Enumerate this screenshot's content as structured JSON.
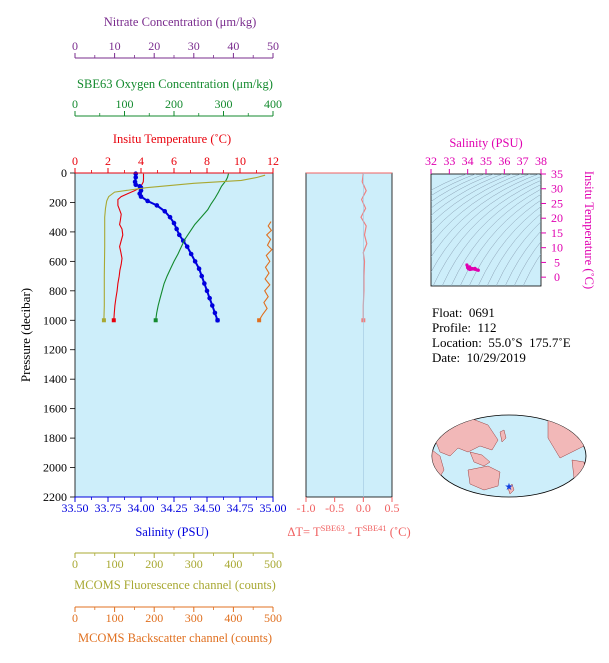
{
  "colors": {
    "plot_bg": "#cdeefa",
    "temperature": "#e8000b",
    "salinity": "#0000dd",
    "oxygen": "#138a2e",
    "nitrate": "#7a2c8e",
    "fluorescence": "#a8a832",
    "backscatter": "#e07020",
    "ts_accent": "#e000b0",
    "delta_t": "#f08080",
    "land": "#f2b8b8",
    "ocean": "#cdeefa",
    "float_marker": "#1040e0"
  },
  "info": {
    "float": "Float:  0691",
    "profile": "Profile:  112",
    "location": "Location:  55.0˚S  175.7˚E",
    "date": "Date:  10/29/2019"
  },
  "chart_data": [
    {
      "type": "line",
      "panel": "profile",
      "ylabel": "Pressure (decibar)",
      "ylim": [
        2200,
        0
      ],
      "y_ticks": [
        0,
        200,
        400,
        600,
        800,
        1000,
        1200,
        1400,
        1600,
        1800,
        2000,
        2200
      ],
      "axes": {
        "nitrate": {
          "label": "Nitrate Concentration (μm/kg)",
          "range": [
            0,
            50
          ],
          "ticks": [
            0,
            10,
            20,
            30,
            40,
            50
          ]
        },
        "oxygen": {
          "label": "SBE63 Oxygen Concentration (μm/kg)",
          "range": [
            0,
            400
          ],
          "ticks": [
            0,
            100,
            200,
            300,
            400
          ]
        },
        "temperature": {
          "label": "Insitu Temperature (˚C)",
          "range": [
            0,
            12
          ],
          "ticks": [
            0,
            2,
            4,
            6,
            8,
            10,
            12
          ]
        },
        "salinity": {
          "label": "Salinity (PSU)",
          "range": [
            33.5,
            35.0
          ],
          "ticks": [
            "33.50",
            "33.75",
            "34.00",
            "34.25",
            "34.50",
            "34.75",
            "35.00"
          ]
        },
        "fluorescence": {
          "label": "MCOMS Fluorescence channel (counts)",
          "range": [
            0,
            500
          ],
          "ticks": [
            0,
            100,
            200,
            300,
            400,
            500
          ]
        },
        "backscatter": {
          "label": "MCOMS Backscatter channel (counts)",
          "range": [
            0,
            500
          ],
          "ticks": [
            0,
            100,
            200,
            300,
            400,
            500
          ]
        }
      },
      "series": [
        {
          "name": "Insitu Temperature (˚C)",
          "axis": "temperature",
          "points": [
            [
              4.15,
              5
            ],
            [
              4.15,
              40
            ],
            [
              4.14,
              60
            ],
            [
              4.05,
              80
            ],
            [
              3.95,
              100
            ],
            [
              3.6,
              120
            ],
            [
              3.2,
              140
            ],
            [
              2.8,
              160
            ],
            [
              2.6,
              180
            ],
            [
              2.6,
              220
            ],
            [
              2.7,
              250
            ],
            [
              2.8,
              280
            ],
            [
              2.75,
              320
            ],
            [
              2.7,
              350
            ],
            [
              2.85,
              380
            ],
            [
              2.9,
              420
            ],
            [
              2.8,
              460
            ],
            [
              2.7,
              500
            ],
            [
              2.78,
              540
            ],
            [
              2.85,
              580
            ],
            [
              2.8,
              620
            ],
            [
              2.72,
              660
            ],
            [
              2.68,
              700
            ],
            [
              2.6,
              750
            ],
            [
              2.55,
              800
            ],
            [
              2.48,
              850
            ],
            [
              2.42,
              900
            ],
            [
              2.38,
              950
            ],
            [
              2.35,
              1000
            ]
          ]
        },
        {
          "name": "Salinity (PSU)",
          "axis": "salinity",
          "markers": true,
          "points": [
            [
              33.96,
              5
            ],
            [
              33.96,
              30
            ],
            [
              33.955,
              60
            ],
            [
              33.96,
              80
            ],
            [
              33.99,
              90
            ],
            [
              34.0,
              100
            ],
            [
              34.0,
              120
            ],
            [
              33.99,
              140
            ],
            [
              34.0,
              160
            ],
            [
              34.05,
              190
            ],
            [
              34.12,
              220
            ],
            [
              34.18,
              260
            ],
            [
              34.22,
              300
            ],
            [
              34.25,
              340
            ],
            [
              34.27,
              380
            ],
            [
              34.29,
              420
            ],
            [
              34.32,
              460
            ],
            [
              34.35,
              500
            ],
            [
              34.38,
              550
            ],
            [
              34.41,
              600
            ],
            [
              34.44,
              650
            ],
            [
              34.46,
              700
            ],
            [
              34.48,
              750
            ],
            [
              34.5,
              800
            ],
            [
              34.52,
              850
            ],
            [
              34.54,
              900
            ],
            [
              34.56,
              950
            ],
            [
              34.58,
              1000
            ]
          ]
        },
        {
          "name": "SBE63 Oxygen Concentration (μm/kg)",
          "axis": "oxygen",
          "points": [
            [
              310,
              5
            ],
            [
              308,
              30
            ],
            [
              305,
              50
            ],
            [
              296,
              90
            ],
            [
              290,
              130
            ],
            [
              283,
              170
            ],
            [
              275,
              210
            ],
            [
              268,
              250
            ],
            [
              255,
              300
            ],
            [
              242,
              350
            ],
            [
              232,
              400
            ],
            [
              222,
              450
            ],
            [
              215,
              500
            ],
            [
              208,
              550
            ],
            [
              200,
              600
            ],
            [
              193,
              650
            ],
            [
              186,
              700
            ],
            [
              180,
              750
            ],
            [
              176,
              800
            ],
            [
              172,
              850
            ],
            [
              168,
              900
            ],
            [
              165,
              950
            ],
            [
              163,
              1000
            ]
          ]
        },
        {
          "name": "MCOMS Fluorescence channel (counts)",
          "axis": "fluorescence",
          "points": [
            [
              480,
              15
            ],
            [
              460,
              30
            ],
            [
              420,
              50
            ],
            [
              300,
              70
            ],
            [
              180,
              100
            ],
            [
              100,
              130
            ],
            [
              85,
              160
            ],
            [
              80,
              190
            ],
            [
              77,
              240
            ],
            [
              75,
              300
            ],
            [
              75,
              500
            ],
            [
              74,
              700
            ],
            [
              74,
              900
            ],
            [
              73,
              1000
            ]
          ]
        },
        {
          "name": "MCOMS Backscatter channel (counts)",
          "axis": "backscatter",
          "points": [
            [
              495,
              330
            ],
            [
              488,
              360
            ],
            [
              496,
              390
            ],
            [
              484,
              420
            ],
            [
              494,
              450
            ],
            [
              486,
              490
            ],
            [
              497,
              520
            ],
            [
              483,
              560
            ],
            [
              492,
              600
            ],
            [
              481,
              640
            ],
            [
              490,
              680
            ],
            [
              480,
              720
            ],
            [
              492,
              760
            ],
            [
              479,
              800
            ],
            [
              488,
              840
            ],
            [
              477,
              880
            ],
            [
              485,
              920
            ],
            [
              474,
              960
            ],
            [
              465,
              1000
            ]
          ]
        }
      ]
    },
    {
      "type": "line",
      "panel": "delta_t",
      "xlabel": "ΔT= T",
      "xlabel_sup1": "SBE63",
      "xlabel_mid": " - T",
      "xlabel_sup2": "SBE41",
      "xlabel_end": " (˚C)",
      "xlim": [
        -1.0,
        0.5
      ],
      "x_ticks": [
        "-1.0",
        "-0.5",
        "0.0",
        "0.5"
      ],
      "ylim": [
        2200,
        0
      ],
      "series": [
        {
          "name": "ΔT",
          "points": [
            [
              0.0,
              5
            ],
            [
              -0.02,
              60
            ],
            [
              0.05,
              120
            ],
            [
              -0.03,
              180
            ],
            [
              0.04,
              240
            ],
            [
              -0.04,
              300
            ],
            [
              0.05,
              360
            ],
            [
              0.02,
              420
            ],
            [
              0.06,
              480
            ],
            [
              0.0,
              540
            ],
            [
              0.02,
              600
            ],
            [
              0.01,
              700
            ],
            [
              0.01,
              800
            ],
            [
              0.0,
              900
            ],
            [
              0.0,
              1000
            ]
          ]
        }
      ]
    },
    {
      "type": "scatter",
      "panel": "ts_diagram",
      "xlabel": "Salinity (PSU)",
      "ylabel": "Insitu Temperature (˚C)",
      "xlim": [
        32,
        38
      ],
      "ylim": [
        -3,
        35
      ],
      "x_ticks": [
        32,
        33,
        34,
        35,
        36,
        37,
        38
      ],
      "y_ticks": [
        0,
        5,
        10,
        15,
        20,
        25,
        30,
        35
      ],
      "series": [
        {
          "name": "T-S",
          "points": [
            [
              33.96,
              4.15
            ],
            [
              33.99,
              3.6
            ],
            [
              34.0,
              3.2
            ],
            [
              34.05,
              2.8
            ],
            [
              34.12,
              2.6
            ],
            [
              34.2,
              2.7
            ],
            [
              34.25,
              2.8
            ],
            [
              34.3,
              2.8
            ],
            [
              34.38,
              2.7
            ],
            [
              34.44,
              2.6
            ],
            [
              34.5,
              2.5
            ],
            [
              34.56,
              2.4
            ],
            [
              34.58,
              2.35
            ],
            [
              34.4,
              3.0
            ],
            [
              34.1,
              3.5
            ]
          ]
        }
      ]
    }
  ]
}
